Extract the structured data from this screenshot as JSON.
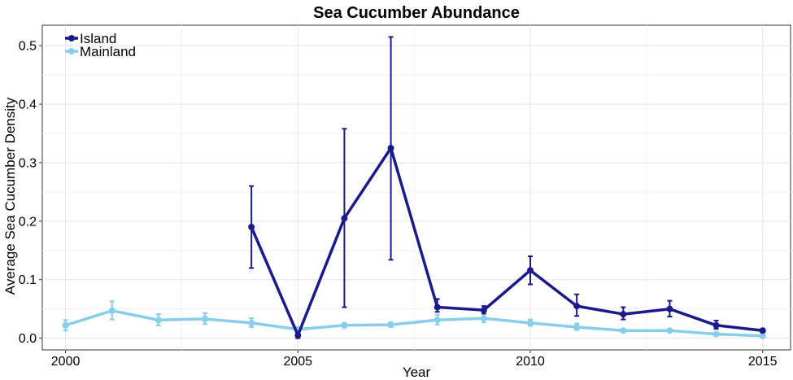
{
  "chart_data": {
    "type": "line",
    "title": "Sea Cucumber Abundance",
    "xlabel": "Year",
    "ylabel": "Average Sea Cucumber Density",
    "xlim": [
      1999.5,
      2015.6
    ],
    "ylim": [
      -0.02,
      0.535
    ],
    "xticks": [
      2000,
      2005,
      2010,
      2015
    ],
    "yticks": [
      0.0,
      0.1,
      0.2,
      0.3,
      0.4,
      0.5
    ],
    "xtick_labels": [
      "2000",
      "2005",
      "2010",
      "2015"
    ],
    "ytick_labels": [
      "0.0",
      "0.1",
      "0.2",
      "0.3",
      "0.4",
      "0.5"
    ],
    "grid": true,
    "legend_position": "top-left",
    "series": [
      {
        "name": "Island",
        "color": "#1a1a8c",
        "points": [
          {
            "x": 2004,
            "y": 0.19,
            "lo": 0.12,
            "hi": 0.26
          },
          {
            "x": 2005,
            "y": 0.005,
            "lo": 0.0,
            "hi": 0.01
          },
          {
            "x": 2006,
            "y": 0.205,
            "lo": 0.053,
            "hi": 0.358
          },
          {
            "x": 2007,
            "y": 0.325,
            "lo": 0.134,
            "hi": 0.515
          },
          {
            "x": 2008,
            "y": 0.053,
            "lo": 0.045,
            "hi": 0.067
          },
          {
            "x": 2009,
            "y": 0.048,
            "lo": 0.042,
            "hi": 0.055
          },
          {
            "x": 2010,
            "y": 0.116,
            "lo": 0.092,
            "hi": 0.14
          },
          {
            "x": 2011,
            "y": 0.055,
            "lo": 0.038,
            "hi": 0.075
          },
          {
            "x": 2012,
            "y": 0.041,
            "lo": 0.032,
            "hi": 0.053
          },
          {
            "x": 2013,
            "y": 0.05,
            "lo": 0.037,
            "hi": 0.064
          },
          {
            "x": 2014,
            "y": 0.022,
            "lo": 0.016,
            "hi": 0.03
          },
          {
            "x": 2015,
            "y": 0.013,
            "lo": 0.01,
            "hi": 0.016
          }
        ]
      },
      {
        "name": "Mainland",
        "color": "#87ceeb",
        "points": [
          {
            "x": 2000,
            "y": 0.022,
            "lo": 0.013,
            "hi": 0.031
          },
          {
            "x": 2001,
            "y": 0.047,
            "lo": 0.032,
            "hi": 0.063
          },
          {
            "x": 2002,
            "y": 0.031,
            "lo": 0.022,
            "hi": 0.041
          },
          {
            "x": 2003,
            "y": 0.033,
            "lo": 0.024,
            "hi": 0.043
          },
          {
            "x": 2004,
            "y": 0.026,
            "lo": 0.019,
            "hi": 0.034
          },
          {
            "x": 2005,
            "y": 0.015,
            "lo": 0.011,
            "hi": 0.019
          },
          {
            "x": 2006,
            "y": 0.022,
            "lo": 0.018,
            "hi": 0.026
          },
          {
            "x": 2007,
            "y": 0.023,
            "lo": 0.019,
            "hi": 0.027
          },
          {
            "x": 2008,
            "y": 0.031,
            "lo": 0.023,
            "hi": 0.04
          },
          {
            "x": 2009,
            "y": 0.034,
            "lo": 0.027,
            "hi": 0.042
          },
          {
            "x": 2010,
            "y": 0.026,
            "lo": 0.021,
            "hi": 0.032
          },
          {
            "x": 2011,
            "y": 0.019,
            "lo": 0.014,
            "hi": 0.025
          },
          {
            "x": 2012,
            "y": 0.013,
            "lo": 0.011,
            "hi": 0.016
          },
          {
            "x": 2013,
            "y": 0.013,
            "lo": 0.011,
            "hi": 0.015
          },
          {
            "x": 2014,
            "y": 0.007,
            "lo": 0.005,
            "hi": 0.009
          },
          {
            "x": 2015,
            "y": 0.004,
            "lo": 0.003,
            "hi": 0.005
          }
        ]
      }
    ]
  }
}
